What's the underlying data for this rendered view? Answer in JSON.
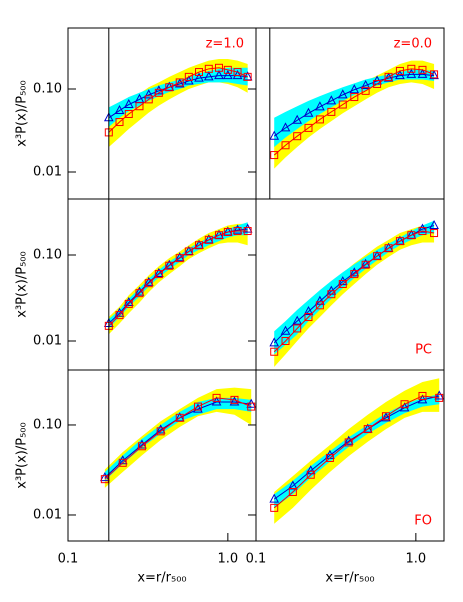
{
  "chart_data": [
    {
      "type": "line",
      "annotation": "z=1.0",
      "annotation_position": "top",
      "xlim": [
        0.1,
        1.5
      ],
      "ylim": [
        0.00473,
        0.543
      ],
      "log_x": true,
      "log_y": true,
      "vline": 0.18,
      "yticks": [
        {
          "value": 0.1,
          "label": "0.10"
        },
        0.01
      ],
      "ylabel": "x³P(x)/P₅₀₀",
      "x": [
        0.18,
        0.21,
        0.24,
        0.28,
        0.32,
        0.37,
        0.43,
        0.5,
        0.57,
        0.66,
        0.76,
        0.88,
        1.0,
        1.15,
        1.33
      ],
      "bands": [
        {
          "color": "#ffff00",
          "lower": [
            0.02,
            0.026,
            0.033,
            0.042,
            0.052,
            0.063,
            0.075,
            0.088,
            0.1,
            0.11,
            0.12,
            0.12,
            0.115,
            0.105,
            0.09
          ],
          "upper": [
            0.045,
            0.058,
            0.072,
            0.088,
            0.105,
            0.12,
            0.14,
            0.16,
            0.18,
            0.2,
            0.22,
            0.23,
            0.23,
            0.22,
            0.2
          ]
        },
        {
          "color": "#00ffff",
          "lower": [
            0.035,
            0.045,
            0.054,
            0.063,
            0.072,
            0.082,
            0.092,
            0.1,
            0.11,
            0.115,
            0.12,
            0.12,
            0.12,
            0.115,
            0.11
          ],
          "upper": [
            0.06,
            0.07,
            0.08,
            0.09,
            0.1,
            0.11,
            0.12,
            0.13,
            0.14,
            0.155,
            0.165,
            0.175,
            0.18,
            0.18,
            0.18
          ]
        }
      ],
      "series": [
        {
          "color": "#0000cc",
          "marker": "triangle",
          "values": [
            0.045,
            0.055,
            0.065,
            0.075,
            0.085,
            0.095,
            0.105,
            0.115,
            0.125,
            0.135,
            0.14,
            0.145,
            0.145,
            0.145,
            0.14
          ]
        },
        {
          "color": "#ff0000",
          "marker": "square",
          "values": [
            0.03,
            0.04,
            0.05,
            0.062,
            0.075,
            0.09,
            0.105,
            0.12,
            0.14,
            0.16,
            0.175,
            0.18,
            0.17,
            0.16,
            0.14
          ]
        }
      ]
    },
    {
      "type": "line",
      "annotation": "z=0.0",
      "annotation_position": "top",
      "xlim": [
        0.1,
        1.5
      ],
      "ylim": [
        0.00473,
        0.543
      ],
      "log_x": true,
      "log_y": true,
      "vline": 0.122,
      "x": [
        0.13,
        0.153,
        0.181,
        0.213,
        0.251,
        0.296,
        0.349,
        0.412,
        0.485,
        0.572,
        0.675,
        0.795,
        0.937,
        1.1,
        1.3
      ],
      "bands": [
        {
          "color": "#ffff00",
          "lower": [
            0.011,
            0.015,
            0.02,
            0.026,
            0.033,
            0.041,
            0.051,
            0.062,
            0.075,
            0.09,
            0.105,
            0.115,
            0.12,
            0.115,
            0.1
          ],
          "upper": [
            0.025,
            0.032,
            0.04,
            0.05,
            0.062,
            0.075,
            0.09,
            0.105,
            0.125,
            0.145,
            0.17,
            0.2,
            0.22,
            0.22,
            0.2
          ]
        },
        {
          "color": "#00ffff",
          "lower": [
            0.02,
            0.026,
            0.033,
            0.041,
            0.05,
            0.06,
            0.072,
            0.085,
            0.097,
            0.11,
            0.12,
            0.13,
            0.13,
            0.13,
            0.125
          ],
          "upper": [
            0.045,
            0.053,
            0.062,
            0.072,
            0.082,
            0.093,
            0.105,
            0.117,
            0.13,
            0.14,
            0.15,
            0.16,
            0.17,
            0.17,
            0.165
          ]
        }
      ],
      "series": [
        {
          "color": "#0000cc",
          "marker": "triangle",
          "values": [
            0.027,
            0.034,
            0.042,
            0.051,
            0.061,
            0.072,
            0.085,
            0.098,
            0.11,
            0.125,
            0.135,
            0.145,
            0.15,
            0.15,
            0.145
          ]
        },
        {
          "color": "#ff0000",
          "marker": "square",
          "values": [
            0.016,
            0.021,
            0.027,
            0.034,
            0.043,
            0.053,
            0.065,
            0.08,
            0.095,
            0.115,
            0.14,
            0.165,
            0.175,
            0.17,
            0.15
          ]
        }
      ]
    },
    {
      "type": "line",
      "xlim": [
        0.1,
        1.5
      ],
      "ylim": [
        0.0046,
        0.448
      ],
      "log_x": true,
      "log_y": true,
      "vline": 0.18,
      "yticks": [
        {
          "value": 0.1,
          "label": "0.10"
        },
        0.01
      ],
      "ylabel": "x³P(x)/P₅₀₀",
      "x": [
        0.18,
        0.21,
        0.24,
        0.28,
        0.32,
        0.37,
        0.43,
        0.5,
        0.57,
        0.66,
        0.76,
        0.88,
        1.0,
        1.15,
        1.33
      ],
      "bands": [
        {
          "color": "#ffff00",
          "lower": [
            0.012,
            0.016,
            0.021,
            0.028,
            0.037,
            0.048,
            0.06,
            0.074,
            0.09,
            0.105,
            0.12,
            0.135,
            0.14,
            0.14,
            0.13
          ],
          "upper": [
            0.019,
            0.025,
            0.034,
            0.045,
            0.058,
            0.074,
            0.092,
            0.11,
            0.13,
            0.155,
            0.18,
            0.2,
            0.22,
            0.23,
            0.23
          ]
        },
        {
          "color": "#00ffff",
          "lower": [
            0.014,
            0.019,
            0.025,
            0.033,
            0.043,
            0.055,
            0.068,
            0.083,
            0.1,
            0.115,
            0.13,
            0.145,
            0.16,
            0.17,
            0.17
          ],
          "upper": [
            0.018,
            0.023,
            0.031,
            0.041,
            0.053,
            0.067,
            0.084,
            0.1,
            0.12,
            0.14,
            0.16,
            0.18,
            0.2,
            0.22,
            0.24
          ]
        }
      ],
      "series": [
        {
          "color": "#0000cc",
          "marker": "triangle",
          "values": [
            0.016,
            0.021,
            0.028,
            0.037,
            0.048,
            0.061,
            0.076,
            0.093,
            0.11,
            0.13,
            0.15,
            0.17,
            0.185,
            0.195,
            0.2
          ]
        },
        {
          "color": "#ff0000",
          "marker": "square",
          "values": [
            0.015,
            0.02,
            0.027,
            0.036,
            0.047,
            0.06,
            0.075,
            0.092,
            0.11,
            0.13,
            0.15,
            0.17,
            0.185,
            0.19,
            0.19
          ]
        }
      ]
    },
    {
      "type": "line",
      "annotation": "PC",
      "annotation_position": "bottom",
      "xlim": [
        0.1,
        1.5
      ],
      "ylim": [
        0.0046,
        0.448
      ],
      "log_x": true,
      "log_y": true,
      "x": [
        0.13,
        0.153,
        0.181,
        0.213,
        0.251,
        0.296,
        0.349,
        0.412,
        0.485,
        0.572,
        0.675,
        0.795,
        0.937,
        1.1,
        1.3
      ],
      "bands": [
        {
          "color": "#ffff00",
          "lower": [
            0.005,
            0.007,
            0.01,
            0.014,
            0.019,
            0.026,
            0.035,
            0.046,
            0.06,
            0.077,
            0.095,
            0.115,
            0.13,
            0.14,
            0.14
          ],
          "upper": [
            0.011,
            0.015,
            0.02,
            0.027,
            0.036,
            0.047,
            0.062,
            0.08,
            0.1,
            0.125,
            0.15,
            0.18,
            0.2,
            0.22,
            0.23
          ]
        },
        {
          "color": "#00ffff",
          "lower": [
            0.007,
            0.009,
            0.012,
            0.017,
            0.023,
            0.031,
            0.041,
            0.054,
            0.069,
            0.087,
            0.108,
            0.13,
            0.15,
            0.17,
            0.18
          ],
          "upper": [
            0.013,
            0.017,
            0.023,
            0.03,
            0.039,
            0.05,
            0.063,
            0.078,
            0.095,
            0.115,
            0.135,
            0.16,
            0.19,
            0.22,
            0.25
          ]
        }
      ],
      "series": [
        {
          "color": "#0000cc",
          "marker": "triangle",
          "values": [
            0.0095,
            0.013,
            0.017,
            0.022,
            0.029,
            0.038,
            0.049,
            0.062,
            0.078,
            0.097,
            0.12,
            0.145,
            0.17,
            0.2,
            0.22
          ]
        },
        {
          "color": "#ff0000",
          "marker": "square",
          "values": [
            0.0075,
            0.01,
            0.014,
            0.019,
            0.026,
            0.035,
            0.046,
            0.06,
            0.077,
            0.097,
            0.12,
            0.145,
            0.17,
            0.19,
            0.18
          ]
        }
      ]
    },
    {
      "type": "line",
      "xlim": [
        0.1,
        1.5
      ],
      "ylim": [
        0.00514,
        0.408
      ],
      "log_x": true,
      "log_y": true,
      "vline": 0.18,
      "yticks": [
        {
          "value": 0.1,
          "label": "0.10"
        },
        0.01
      ],
      "ylabel": "x³P(x)/P₅₀₀",
      "xticks": [
        0.1,
        {
          "value": 1,
          "label": "1.0"
        }
      ],
      "xlabel": "x=r/r₅₀₀",
      "x": [
        0.17,
        0.22,
        0.29,
        0.38,
        0.5,
        0.65,
        0.85,
        1.1,
        1.4
      ],
      "bands": [
        {
          "color": "#ffff00",
          "lower": [
            0.02,
            0.03,
            0.046,
            0.068,
            0.095,
            0.125,
            0.14,
            0.13,
            0.1
          ],
          "upper": [
            0.032,
            0.05,
            0.075,
            0.11,
            0.15,
            0.2,
            0.25,
            0.26,
            0.25
          ]
        },
        {
          "color": "#00ffff",
          "lower": [
            0.024,
            0.037,
            0.056,
            0.08,
            0.11,
            0.13,
            0.15,
            0.15,
            0.14
          ],
          "upper": [
            0.03,
            0.046,
            0.07,
            0.1,
            0.14,
            0.18,
            0.2,
            0.2,
            0.19
          ]
        }
      ],
      "series": [
        {
          "color": "#0000cc",
          "marker": "triangle",
          "values": [
            0.026,
            0.04,
            0.06,
            0.088,
            0.12,
            0.15,
            0.18,
            0.18,
            0.17
          ]
        },
        {
          "color": "#ff0000",
          "marker": "square",
          "values": [
            0.025,
            0.038,
            0.058,
            0.085,
            0.12,
            0.16,
            0.2,
            0.19,
            0.16
          ]
        }
      ]
    },
    {
      "type": "line",
      "annotation": "FO",
      "annotation_position": "bottom",
      "xlim": [
        0.1,
        1.5
      ],
      "ylim": [
        0.00514,
        0.408
      ],
      "log_x": true,
      "log_y": true,
      "xticks": [
        0.1,
        {
          "value": 1,
          "label": "1.0"
        }
      ],
      "xlabel": "x=r/r₅₀₀",
      "x": [
        0.13,
        0.17,
        0.22,
        0.29,
        0.38,
        0.5,
        0.65,
        0.85,
        1.1,
        1.4
      ],
      "bands": [
        {
          "color": "#ffff00",
          "lower": [
            0.008,
            0.012,
            0.019,
            0.03,
            0.045,
            0.065,
            0.09,
            0.12,
            0.14,
            0.14
          ],
          "upper": [
            0.018,
            0.027,
            0.04,
            0.06,
            0.09,
            0.13,
            0.18,
            0.24,
            0.3,
            0.33
          ]
        },
        {
          "color": "#00ffff",
          "lower": [
            0.012,
            0.017,
            0.026,
            0.039,
            0.057,
            0.08,
            0.105,
            0.135,
            0.16,
            0.17
          ],
          "upper": [
            0.017,
            0.024,
            0.035,
            0.051,
            0.073,
            0.1,
            0.135,
            0.17,
            0.2,
            0.22
          ]
        }
      ],
      "series": [
        {
          "color": "#0000cc",
          "marker": "triangle",
          "values": [
            0.015,
            0.021,
            0.031,
            0.046,
            0.066,
            0.09,
            0.12,
            0.155,
            0.19,
            0.21
          ]
        },
        {
          "color": "#ff0000",
          "marker": "square",
          "values": [
            0.012,
            0.018,
            0.028,
            0.043,
            0.064,
            0.09,
            0.125,
            0.17,
            0.21,
            0.2
          ]
        }
      ]
    }
  ]
}
